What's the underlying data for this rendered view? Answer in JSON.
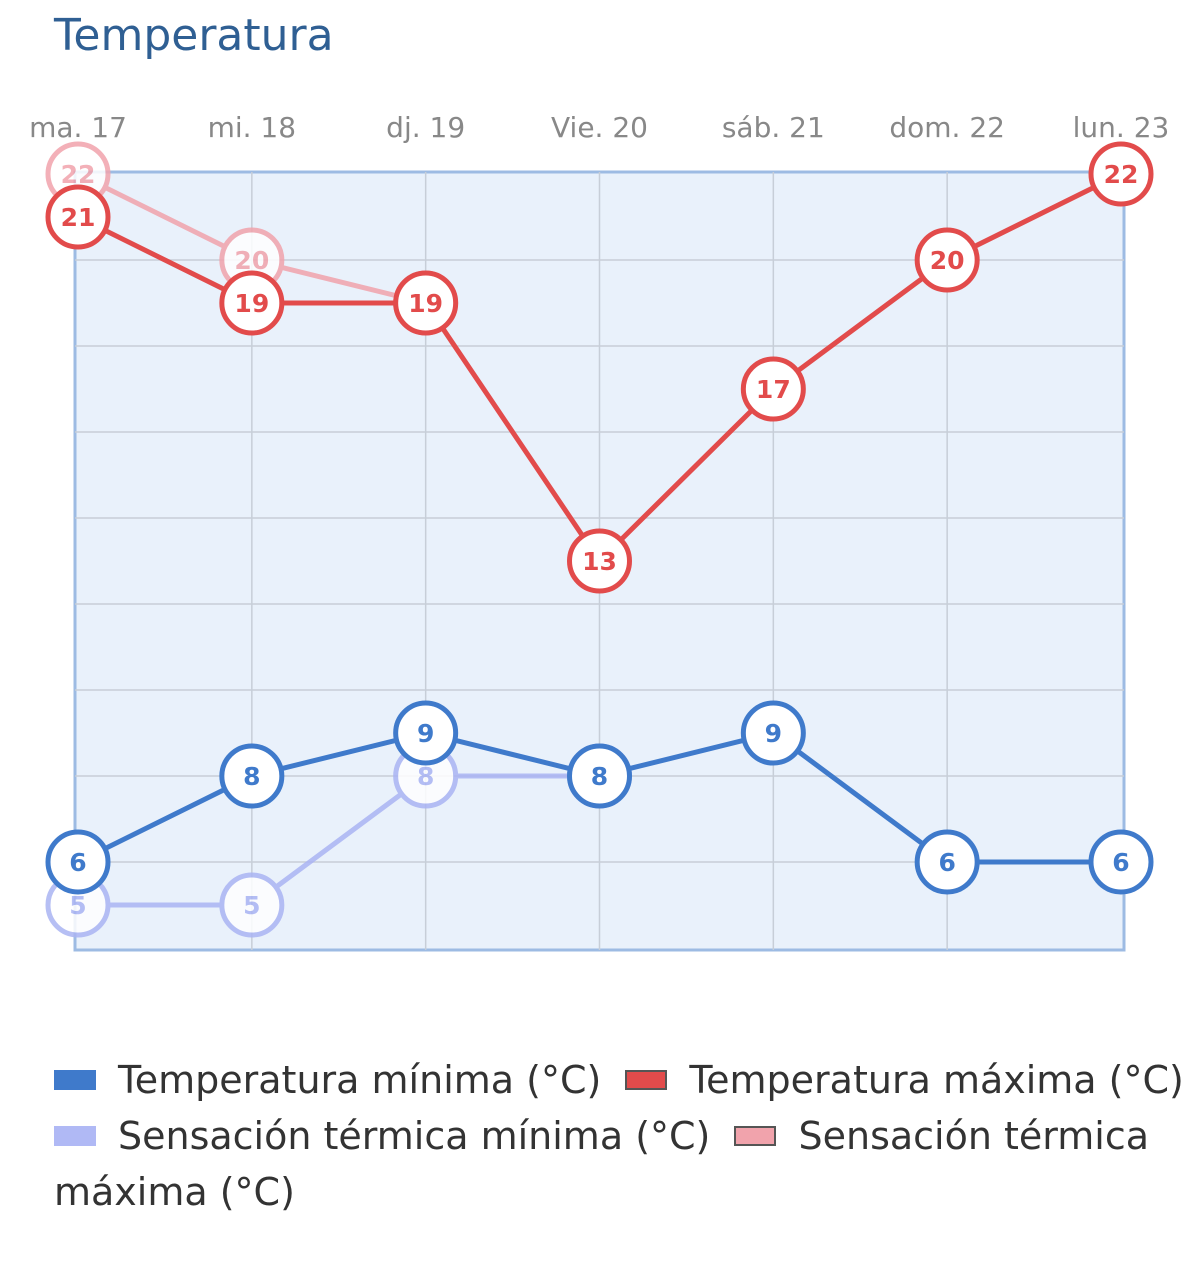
{
  "chart_data": {
    "type": "line",
    "title": "Temperatura",
    "categories": [
      "ma. 17",
      "mi. 18",
      "dj. 19",
      "Vie. 20",
      "sáb. 21",
      "dom. 22",
      "lun. 23"
    ],
    "ylim": [
      4,
      22
    ],
    "grid": true,
    "legend_position": "bottom",
    "series": [
      {
        "name": "Temperatura mínima (°C)",
        "color": "#3f7acb",
        "values": [
          6,
          8,
          9,
          8,
          9,
          6,
          6
        ]
      },
      {
        "name": "Temperatura máxima (°C)",
        "color": "#e24b4b",
        "values": [
          21,
          19,
          19,
          13,
          17,
          20,
          22
        ]
      },
      {
        "name": "Sensación térmica mínima (°C)",
        "color": "#aab4f3",
        "values": [
          5,
          5,
          8,
          8,
          null,
          null,
          null
        ]
      },
      {
        "name": "Sensación térmica máxima (°C)",
        "color": "#f1a3ac",
        "values": [
          22,
          20,
          19,
          null,
          null,
          null,
          null
        ]
      }
    ]
  }
}
